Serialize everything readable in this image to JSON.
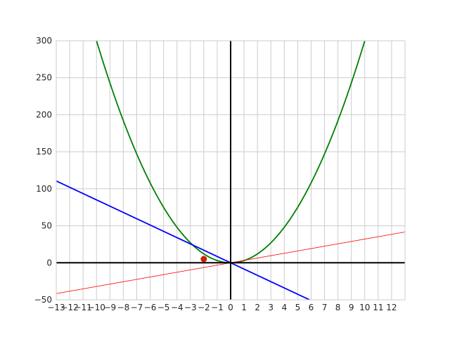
{
  "chart_data": {
    "type": "line",
    "title": "",
    "xlabel": "",
    "ylabel": "",
    "xlim": [
      -13,
      13
    ],
    "ylim": [
      -50,
      300
    ],
    "grid": true,
    "x_ticks": [
      -13,
      -12,
      -11,
      -10,
      -9,
      -8,
      -7,
      -6,
      -5,
      -4,
      -3,
      -2,
      -1,
      0,
      1,
      2,
      3,
      4,
      5,
      6,
      7,
      8,
      9,
      10,
      11,
      12
    ],
    "x_tick_labels": [
      "−13",
      "−12",
      "−11",
      "−10",
      "−9",
      "−8",
      "−7",
      "−6",
      "−5",
      "−4",
      "−3",
      "−2",
      "−1",
      "0",
      "1",
      "2",
      "3",
      "4",
      "5",
      "6",
      "7",
      "8",
      "9",
      "10",
      "11",
      "12"
    ],
    "y_ticks": [
      -50,
      0,
      50,
      100,
      150,
      200,
      250,
      300
    ],
    "y_tick_labels": [
      "−50",
      "0",
      "50",
      "100",
      "150",
      "200",
      "250",
      "300"
    ],
    "series": [
      {
        "kind": "function",
        "expr": "3x^2",
        "coefficients": [
          0,
          0,
          3
        ],
        "x_range": [
          -13,
          13
        ],
        "color": "#008000"
      },
      {
        "kind": "function",
        "expr": "-8.5x",
        "coefficients": [
          0,
          -8.5
        ],
        "x_range": [
          -13,
          13
        ],
        "color": "#0000ff"
      },
      {
        "kind": "function",
        "expr": "3.2x",
        "coefficients": [
          0,
          3.2
        ],
        "x_range": [
          -13,
          13
        ],
        "color": "#ff0000"
      },
      {
        "kind": "point",
        "x": -2,
        "y": 5,
        "color": "#cc2200"
      }
    ],
    "axis_line_color": "#000000",
    "grid_color": "#cccccc"
  }
}
